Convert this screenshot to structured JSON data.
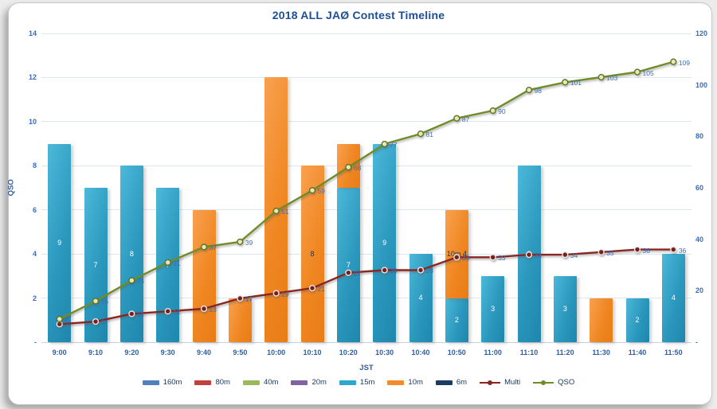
{
  "chart_data": {
    "type": "combo: stacked bar + cumulative lines",
    "title": "2018 ALL JAØ Contest Timeline",
    "xlabel": "JST",
    "ylabel_left": "QSO",
    "categories": [
      "9:00",
      "9:10",
      "9:20",
      "9:30",
      "9:40",
      "9:50",
      "10:00",
      "10:10",
      "10:20",
      "10:30",
      "10:40",
      "10:50",
      "11:00",
      "11:10",
      "11:20",
      "11:30",
      "11:40",
      "11:50"
    ],
    "left_axis": {
      "min": 0,
      "max": 14,
      "tick_step": 2,
      "tick_labels_top_to_bottom": [
        "14",
        "12",
        "10",
        "8",
        "6",
        "4",
        "2",
        "-"
      ]
    },
    "right_axis": {
      "min": 0,
      "max": 120,
      "tick_step": 20,
      "tick_labels_top_to_bottom": [
        "120",
        "100",
        "80",
        "60",
        "40",
        "20",
        "-"
      ]
    },
    "grid": "horizontal",
    "bar_series": [
      {
        "name": "15m",
        "color": "#2b98bd",
        "values": [
          9,
          7,
          8,
          7,
          0,
          0,
          0,
          0,
          7,
          9,
          4,
          2,
          3,
          8,
          3,
          0,
          2,
          4
        ],
        "point_labels": [
          "9",
          "7",
          "8",
          "7",
          "",
          "",
          "",
          "",
          "7",
          "9",
          "4",
          "2",
          "3",
          "8",
          "3",
          "",
          "2",
          "4"
        ],
        "label_color": "#ffffff"
      },
      {
        "name": "10m",
        "color": "#f08722",
        "values": [
          0,
          0,
          0,
          0,
          6,
          2,
          12,
          8,
          2,
          0,
          0,
          4,
          0,
          0,
          0,
          2,
          0,
          0
        ],
        "point_labels": [
          "",
          "",
          "",
          "",
          "",
          "",
          "",
          "8",
          "",
          "",
          "",
          "10m  4",
          "",
          "",
          "",
          "",
          "",
          ""
        ],
        "label_color": "#17375e"
      }
    ],
    "line_series": [
      {
        "name": "Multi",
        "color": "#8a2622",
        "axis": "right",
        "marker_fill": "#7c1f1a",
        "marker_ring": "#e8e8e8",
        "values": [
          7,
          8,
          11,
          12,
          13,
          17,
          19,
          21,
          27,
          28,
          28,
          33,
          33,
          34,
          34,
          35,
          36,
          36
        ],
        "point_labels": [
          "7",
          "8",
          "11",
          "12",
          "13",
          "17",
          "19",
          "21",
          "27",
          "28",
          "28",
          "33",
          "33",
          "34",
          "34",
          "35",
          "36",
          "36"
        ]
      },
      {
        "name": "QSO",
        "color": "#6f8c26",
        "axis": "right",
        "marker_fill": "#e9e6be",
        "marker_ring": "#5c761f",
        "values": [
          9,
          16,
          24,
          31,
          37,
          39,
          51,
          59,
          68,
          77,
          81,
          87,
          90,
          98,
          101,
          103,
          105,
          109
        ],
        "point_labels": [
          "9",
          "16",
          "24",
          "31",
          "37",
          "39",
          "51",
          "59",
          "68",
          "77",
          "81",
          "87",
          "90",
          "98",
          "101",
          "103",
          "105",
          "109"
        ]
      }
    ],
    "legend": [
      {
        "label": "160m",
        "type": "bar",
        "color": "#4f81bd"
      },
      {
        "label": "80m",
        "type": "bar",
        "color": "#c0413d"
      },
      {
        "label": "40m",
        "type": "bar",
        "color": "#9aba59"
      },
      {
        "label": "20m",
        "type": "bar",
        "color": "#7e62a1"
      },
      {
        "label": "15m",
        "type": "bar",
        "color": "#2da7cb"
      },
      {
        "label": "10m",
        "type": "bar",
        "color": "#f28a2e"
      },
      {
        "label": "6m",
        "type": "bar",
        "color": "#1b3a66"
      },
      {
        "label": "Multi",
        "type": "line",
        "color": "#8a2622"
      },
      {
        "label": "QSO",
        "type": "line",
        "color": "#6f8c26"
      }
    ],
    "label_text_color": "#3d6cb3",
    "title_color": "#1e4e94"
  }
}
